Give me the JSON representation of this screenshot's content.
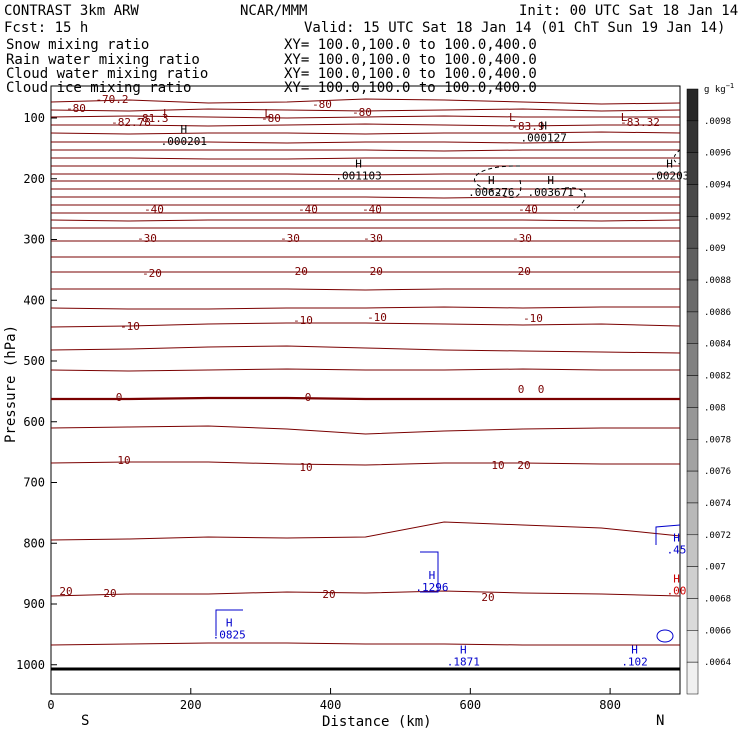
{
  "header": {
    "title": "CONTRAST  3km ARW",
    "center": "NCAR/MMM",
    "init": "Init: 00 UTC Sat 18 Jan 14",
    "fcst": "Fcst:   15 h",
    "valid": "Valid: 15 UTC Sat 18 Jan 14 (01 ChT Sun 19 Jan 14)"
  },
  "legend": [
    {
      "label": "Snow mixing ratio",
      "xy": "XY=  100.0,100.0 to 100.0,400.0",
      "color": "#000000"
    },
    {
      "label": "Rain water mixing ratio",
      "xy": "XY=  100.0,100.0 to 100.0,400.0",
      "color": "#cc0000"
    },
    {
      "label": "Cloud water mixing ratio",
      "xy": "XY=  100.0,100.0 to 100.0,400.0",
      "color": "#0000cc"
    },
    {
      "label": "Cloud ice mixing ratio",
      "xy": "XY=  100.0,100.0 to 100.0,400.0",
      "color": "#000000"
    }
  ],
  "chart_data": {
    "type": "contour",
    "xlabel": "Distance (km)",
    "ylabel": "Pressure (hPa)",
    "xlim": [
      0,
      900
    ],
    "ylim": [
      1050,
      50
    ],
    "xticks": [
      0,
      200,
      400,
      600,
      800
    ],
    "yticks": [
      100,
      200,
      300,
      400,
      500,
      600,
      700,
      800,
      900,
      1000
    ],
    "x_end_labels": {
      "left": "S",
      "right": "N"
    },
    "contour_color": "#7a0000",
    "isotherm_labels": [
      "-70.2",
      "-80",
      "-82.78",
      "-81.3",
      "-80",
      "-80",
      "-80",
      "-83.9",
      "-83.32",
      "-40",
      "-40",
      "-40",
      "-40",
      "-30",
      "-30",
      "-30",
      "-30",
      "-20",
      "-20",
      "-20",
      "-20",
      "-10",
      "-10",
      "-10",
      "-10",
      "0",
      "0",
      "0",
      "0",
      "10",
      "10",
      "10",
      "20",
      "20",
      "20",
      "20",
      "20"
    ],
    "extrema": [
      {
        "kind": "H",
        "value": ".000201",
        "x": 190,
        "p": 128,
        "color": "#000000"
      },
      {
        "kind": "H",
        "value": ".001103",
        "x": 440,
        "p": 185,
        "color": "#000000"
      },
      {
        "kind": "H",
        "value": ".006276",
        "x": 630,
        "p": 212,
        "color": "#000000"
      },
      {
        "kind": "H",
        "value": ".003671",
        "x": 715,
        "p": 212,
        "color": "#000000"
      },
      {
        "kind": "H",
        "value": ".000127",
        "x": 705,
        "p": 122,
        "color": "#000000"
      },
      {
        "kind": "H",
        "value": ".00203",
        "x": 885,
        "p": 185,
        "color": "#000000"
      },
      {
        "kind": "H",
        "value": ".1296",
        "x": 545,
        "p": 862,
        "color": "#0000cc"
      },
      {
        "kind": "H",
        "value": ".0825",
        "x": 255,
        "p": 940,
        "color": "#0000cc"
      },
      {
        "kind": "H",
        "value": ".1871",
        "x": 590,
        "p": 985,
        "color": "#0000cc"
      },
      {
        "kind": "H",
        "value": ".102",
        "x": 835,
        "p": 985,
        "color": "#0000cc"
      },
      {
        "kind": "H",
        "value": ".45",
        "x": 895,
        "p": 800,
        "color": "#0000cc"
      },
      {
        "kind": "H",
        "value": ".00",
        "x": 895,
        "p": 868,
        "color": "#cc0000"
      }
    ],
    "lows": [
      {
        "kind": "L",
        "x": 165,
        "p": 98
      },
      {
        "kind": "L",
        "x": 310,
        "p": 98
      },
      {
        "kind": "L",
        "x": 660,
        "p": 105
      },
      {
        "kind": "L",
        "x": 820,
        "p": 105
      }
    ]
  },
  "colorbar": {
    "units": "g kg",
    "units_exp": "−1",
    "labels": [
      ".0098",
      ".0096",
      ".0094",
      ".0092",
      ".009",
      ".0088",
      ".0086",
      ".0084",
      ".0082",
      ".008",
      ".0078",
      ".0076",
      ".0074",
      ".0072",
      ".007",
      ".0068",
      ".0066",
      ".0064"
    ]
  }
}
